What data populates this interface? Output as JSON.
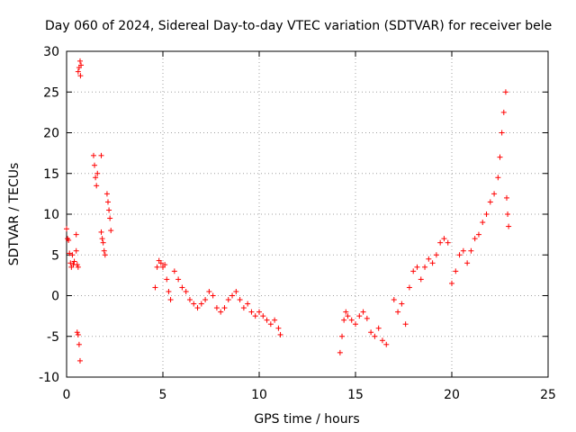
{
  "chart_data": {
    "type": "scatter",
    "title": "Day 060 of 2024, Sidereal Day-to-day VTEC variation (SDTVAR) for receiver bele",
    "xlabel": "GPS time / hours",
    "ylabel": "SDTVAR / TECUs",
    "xlim": [
      0,
      25
    ],
    "ylim": [
      -10,
      30
    ],
    "xticks": [
      0,
      5,
      10,
      15,
      20,
      25
    ],
    "yticks": [
      -10,
      -5,
      0,
      5,
      10,
      15,
      20,
      25,
      30
    ],
    "grid": true,
    "marker": "+",
    "marker_color": "#ff0000",
    "series": [
      {
        "name": "SDTVAR",
        "points": [
          [
            0.0,
            8.2
          ],
          [
            0.05,
            7.0
          ],
          [
            0.1,
            6.8
          ],
          [
            0.15,
            5.2
          ],
          [
            0.2,
            4.0
          ],
          [
            0.25,
            3.5
          ],
          [
            0.3,
            5.0
          ],
          [
            0.35,
            3.8
          ],
          [
            0.4,
            4.2
          ],
          [
            0.5,
            7.5
          ],
          [
            0.5,
            5.5
          ],
          [
            0.55,
            3.8
          ],
          [
            0.6,
            3.5
          ],
          [
            0.55,
            -4.5
          ],
          [
            0.6,
            -4.8
          ],
          [
            0.65,
            -6.0
          ],
          [
            0.7,
            -8.0
          ],
          [
            0.6,
            27.5
          ],
          [
            0.65,
            28.0
          ],
          [
            0.7,
            28.8
          ],
          [
            0.72,
            27.0
          ],
          [
            0.75,
            28.3
          ],
          [
            1.4,
            17.2
          ],
          [
            1.45,
            16.0
          ],
          [
            1.5,
            14.5
          ],
          [
            1.55,
            13.5
          ],
          [
            1.6,
            15.0
          ],
          [
            1.8,
            17.2
          ],
          [
            1.8,
            7.8
          ],
          [
            1.85,
            7.0
          ],
          [
            1.9,
            6.5
          ],
          [
            1.95,
            5.5
          ],
          [
            2.0,
            5.0
          ],
          [
            2.1,
            12.5
          ],
          [
            2.15,
            11.5
          ],
          [
            2.2,
            10.5
          ],
          [
            2.25,
            9.5
          ],
          [
            2.3,
            8.0
          ],
          [
            4.6,
            1.0
          ],
          [
            4.7,
            3.5
          ],
          [
            4.8,
            4.3
          ],
          [
            4.9,
            4.0
          ],
          [
            5.0,
            3.5
          ],
          [
            5.1,
            3.8
          ],
          [
            5.2,
            2.0
          ],
          [
            5.3,
            0.5
          ],
          [
            5.4,
            -0.5
          ],
          [
            5.6,
            3.0
          ],
          [
            5.8,
            2.0
          ],
          [
            6.0,
            1.0
          ],
          [
            6.2,
            0.5
          ],
          [
            6.4,
            -0.5
          ],
          [
            6.6,
            -1.0
          ],
          [
            6.8,
            -1.5
          ],
          [
            7.0,
            -1.0
          ],
          [
            7.2,
            -0.5
          ],
          [
            7.4,
            0.5
          ],
          [
            7.6,
            0.0
          ],
          [
            7.8,
            -1.5
          ],
          [
            8.0,
            -2.0
          ],
          [
            8.2,
            -1.5
          ],
          [
            8.4,
            -0.5
          ],
          [
            8.6,
            0.0
          ],
          [
            8.8,
            0.5
          ],
          [
            9.0,
            -0.5
          ],
          [
            9.2,
            -1.5
          ],
          [
            9.4,
            -1.0
          ],
          [
            9.6,
            -2.0
          ],
          [
            9.8,
            -2.5
          ],
          [
            10.0,
            -2.0
          ],
          [
            10.2,
            -2.5
          ],
          [
            10.4,
            -3.0
          ],
          [
            10.6,
            -3.5
          ],
          [
            10.8,
            -3.0
          ],
          [
            11.0,
            -4.0
          ],
          [
            11.1,
            -4.8
          ],
          [
            14.2,
            -7.0
          ],
          [
            14.3,
            -5.0
          ],
          [
            14.4,
            -3.0
          ],
          [
            14.5,
            -2.0
          ],
          [
            14.6,
            -2.5
          ],
          [
            14.8,
            -3.0
          ],
          [
            15.0,
            -3.5
          ],
          [
            15.2,
            -2.5
          ],
          [
            15.4,
            -2.0
          ],
          [
            15.6,
            -2.8
          ],
          [
            15.8,
            -4.5
          ],
          [
            16.0,
            -5.0
          ],
          [
            16.2,
            -4.0
          ],
          [
            16.4,
            -5.5
          ],
          [
            16.6,
            -6.0
          ],
          [
            17.0,
            -0.5
          ],
          [
            17.2,
            -2.0
          ],
          [
            17.4,
            -1.0
          ],
          [
            17.6,
            -3.5
          ],
          [
            17.8,
            1.0
          ],
          [
            18.0,
            3.0
          ],
          [
            18.2,
            3.5
          ],
          [
            18.4,
            2.0
          ],
          [
            18.6,
            3.5
          ],
          [
            18.8,
            4.5
          ],
          [
            19.0,
            4.0
          ],
          [
            19.2,
            5.0
          ],
          [
            19.4,
            6.5
          ],
          [
            19.6,
            7.0
          ],
          [
            19.8,
            6.5
          ],
          [
            20.0,
            1.5
          ],
          [
            20.2,
            3.0
          ],
          [
            20.4,
            5.0
          ],
          [
            20.6,
            5.5
          ],
          [
            20.8,
            4.0
          ],
          [
            21.0,
            5.5
          ],
          [
            21.2,
            7.0
          ],
          [
            21.4,
            7.5
          ],
          [
            21.6,
            9.0
          ],
          [
            21.8,
            10.0
          ],
          [
            22.0,
            11.5
          ],
          [
            22.2,
            12.5
          ],
          [
            22.4,
            14.5
          ],
          [
            22.5,
            17.0
          ],
          [
            22.6,
            20.0
          ],
          [
            22.7,
            22.5
          ],
          [
            22.8,
            25.0
          ],
          [
            22.85,
            12.0
          ],
          [
            22.9,
            10.0
          ],
          [
            22.95,
            8.5
          ]
        ]
      }
    ]
  }
}
